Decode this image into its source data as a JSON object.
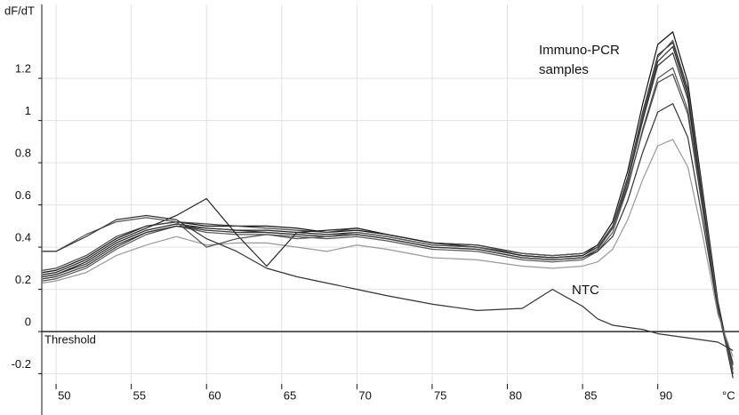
{
  "chart_data": {
    "type": "line",
    "y_label": "dF/dT",
    "x_label": "°C",
    "threshold": 0,
    "threshold_label": "Threshold",
    "annotations": [
      "Immuno-PCR",
      "samples",
      "NTC"
    ],
    "grid": true,
    "xlim": [
      49.05,
      95.4
    ],
    "ylim": [
      -0.248,
      1.55
    ],
    "xticks": [
      50,
      55,
      60,
      65,
      70,
      75,
      80,
      85,
      90
    ],
    "yticks": [
      -0.2,
      0,
      0.2,
      0.4,
      0.6,
      0.8,
      1,
      1.2
    ],
    "x": [
      49.1,
      50,
      52,
      54,
      56,
      58,
      60,
      62,
      64,
      66,
      68,
      70,
      72,
      75,
      78,
      81,
      83,
      85,
      86,
      87,
      88,
      89,
      90,
      91,
      92,
      93,
      94,
      95
    ],
    "series": [
      {
        "color": "#111111",
        "values": [
          0.28,
          0.29,
          0.35,
          0.44,
          0.5,
          0.52,
          0.5,
          0.5,
          0.5,
          0.49,
          0.47,
          0.48,
          0.46,
          0.42,
          0.41,
          0.37,
          0.36,
          0.37,
          0.41,
          0.52,
          0.76,
          1.08,
          1.36,
          1.42,
          1.18,
          0.66,
          0.14,
          -0.2
        ]
      },
      {
        "color": "#222222",
        "values": [
          0.26,
          0.27,
          0.33,
          0.42,
          0.48,
          0.51,
          0.49,
          0.48,
          0.48,
          0.47,
          0.46,
          0.47,
          0.45,
          0.41,
          0.4,
          0.36,
          0.35,
          0.36,
          0.4,
          0.5,
          0.73,
          1.04,
          1.31,
          1.37,
          1.14,
          0.63,
          0.12,
          -0.22
        ]
      },
      {
        "color": "#333333",
        "values": [
          0.25,
          0.26,
          0.31,
          0.4,
          0.47,
          0.5,
          0.48,
          0.47,
          0.47,
          0.46,
          0.45,
          0.46,
          0.44,
          0.4,
          0.39,
          0.35,
          0.34,
          0.35,
          0.39,
          0.49,
          0.71,
          1.0,
          1.26,
          1.32,
          1.1,
          0.6,
          0.1,
          -0.2
        ]
      },
      {
        "color": "#555555",
        "values": [
          0.24,
          0.25,
          0.3,
          0.39,
          0.46,
          0.5,
          0.47,
          0.46,
          0.46,
          0.45,
          0.44,
          0.45,
          0.43,
          0.39,
          0.38,
          0.34,
          0.33,
          0.34,
          0.38,
          0.47,
          0.68,
          0.96,
          1.2,
          1.25,
          1.05,
          0.58,
          0.1,
          -0.18
        ]
      },
      {
        "color": "#444444",
        "values": [
          0.29,
          0.3,
          0.36,
          0.45,
          0.5,
          0.52,
          0.51,
          0.5,
          0.49,
          0.48,
          0.47,
          0.49,
          0.46,
          0.42,
          0.41,
          0.37,
          0.36,
          0.37,
          0.4,
          0.49,
          0.69,
          0.95,
          1.18,
          1.22,
          1.03,
          0.57,
          0.1,
          -0.16
        ]
      },
      {
        "color": "#333333",
        "values": [
          0.26,
          0.27,
          0.32,
          0.41,
          0.47,
          0.5,
          0.49,
          0.48,
          0.47,
          0.46,
          0.45,
          0.46,
          0.44,
          0.4,
          0.39,
          0.35,
          0.34,
          0.35,
          0.38,
          0.45,
          0.62,
          0.85,
          1.04,
          1.08,
          0.92,
          0.52,
          0.1,
          -0.15
        ]
      },
      {
        "color": "#999999",
        "values": [
          0.23,
          0.24,
          0.28,
          0.36,
          0.41,
          0.45,
          0.41,
          0.42,
          0.42,
          0.4,
          0.38,
          0.41,
          0.39,
          0.35,
          0.34,
          0.31,
          0.3,
          0.31,
          0.33,
          0.39,
          0.53,
          0.72,
          0.88,
          0.91,
          0.78,
          0.45,
          0.08,
          -0.12
        ]
      },
      {
        "color": "#222222",
        "values": [
          0.27,
          0.28,
          0.34,
          0.43,
          0.49,
          0.55,
          0.63,
          0.46,
          0.31,
          0.47,
          0.48,
          0.49,
          0.46,
          0.42,
          0.4,
          0.36,
          0.35,
          0.36,
          0.4,
          0.5,
          0.72,
          1.02,
          1.28,
          1.35,
          1.12,
          0.62,
          0.12,
          -0.2
        ]
      },
      {
        "color": "#555555",
        "values": [
          0.38,
          0.38,
          0.46,
          0.52,
          0.54,
          0.52,
          0.4,
          0.44,
          0.46,
          0.44,
          0.45,
          0.47,
          0.45,
          0.41,
          0.4,
          0.37,
          0.36,
          0.37,
          0.4,
          0.5,
          0.72,
          1.03,
          1.3,
          1.38,
          1.15,
          0.64,
          0.12,
          -0.2
        ]
      },
      {
        "color": "#333333",
        "values": [
          0.38,
          0.38,
          0.45,
          0.53,
          0.55,
          0.53,
          0.44,
          0.38,
          0.3,
          0.26,
          0.23,
          0.2,
          0.17,
          0.13,
          0.1,
          0.11,
          0.2,
          0.12,
          0.06,
          0.03,
          0.02,
          0.01,
          -0.01,
          -0.02,
          -0.03,
          -0.04,
          -0.05,
          -0.09
        ]
      }
    ]
  }
}
